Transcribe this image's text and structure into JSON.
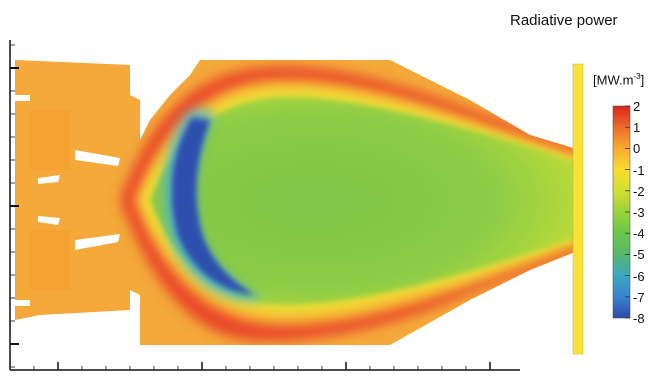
{
  "chart_data": {
    "type": "heatmap",
    "title": "Radiative power",
    "colorbar": {
      "unit_prefix": "[MW.m",
      "unit_exponent": "-3",
      "unit_suffix": "]",
      "tick_labels": [
        "2",
        "1",
        "0",
        "-1",
        "-2",
        "-3",
        "-4",
        "-5",
        "-6",
        "-7",
        "-8"
      ],
      "range": [
        -8,
        2
      ],
      "colors": [
        "#d9261c",
        "#ee6b2a",
        "#f7ab2f",
        "#fadc2e",
        "#d3df2e",
        "#9cd23c",
        "#6cc64a",
        "#57b86a",
        "#3aa8c2",
        "#3a83cf",
        "#2c4aa8"
      ]
    },
    "field": {
      "description_regions": [
        {
          "region": "wall-adjacent shell",
          "level": 0.3
        },
        {
          "region": "flame front",
          "level": 1.6
        },
        {
          "region": "core",
          "level": -2.5
        },
        {
          "region": "crescent",
          "level": -7.5
        }
      ]
    },
    "axis_ticks_bottom_count": 20,
    "axis_ticks_left_count": 14
  },
  "colors": {
    "red": "#e53b22",
    "orange": "#f6a233",
    "yellow": "#fbe134",
    "green": "#8ccc46",
    "deep_blue": "#2f4fae"
  }
}
